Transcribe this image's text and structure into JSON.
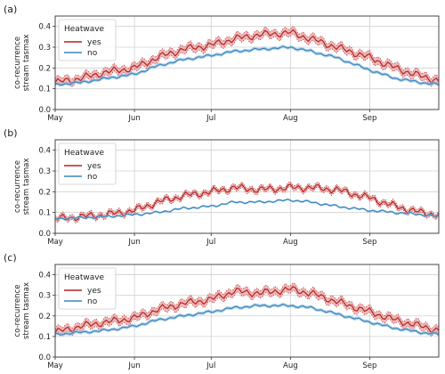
{
  "chart_data": [
    {
      "type": "line",
      "panel_label": "(a)",
      "ylabel_lines": [
        "co-recurrence",
        "stream tasmax"
      ],
      "ylim": [
        0,
        0.45
      ],
      "yticks": [
        "0.0",
        "0.1",
        "0.2",
        "0.3",
        "0.4"
      ],
      "ytick_values": [
        0,
        0.1,
        0.2,
        0.3,
        0.4
      ],
      "x_range_days": [
        0,
        150
      ],
      "xticks": [
        "May",
        "Jun",
        "Jul",
        "Aug",
        "Sep"
      ],
      "xtick_days": [
        0,
        31,
        61,
        92,
        123
      ],
      "grid": true,
      "legend": {
        "title": "Heatwave",
        "placement": "top-left",
        "entries": [
          "yes",
          "no"
        ]
      },
      "series": [
        {
          "name": "yes",
          "color": "#b22222",
          "band_color": "#e8a0a0",
          "x": [
            0,
            10,
            20,
            31,
            40,
            50,
            61,
            70,
            80,
            92,
            100,
            110,
            123,
            133,
            143,
            150
          ],
          "y": [
            0.13,
            0.15,
            0.18,
            0.2,
            0.25,
            0.29,
            0.31,
            0.34,
            0.36,
            0.37,
            0.34,
            0.3,
            0.25,
            0.2,
            0.16,
            0.14
          ],
          "band": 0.018
        },
        {
          "name": "no",
          "color": "#3a86c0",
          "band_color": "#9cc6e4",
          "x": [
            0,
            10,
            20,
            31,
            40,
            50,
            61,
            70,
            80,
            92,
            100,
            110,
            123,
            133,
            143,
            150
          ],
          "y": [
            0.12,
            0.13,
            0.15,
            0.17,
            0.21,
            0.24,
            0.26,
            0.28,
            0.29,
            0.3,
            0.28,
            0.25,
            0.19,
            0.15,
            0.13,
            0.12
          ],
          "band": 0.008
        }
      ]
    },
    {
      "type": "line",
      "panel_label": "(b)",
      "ylabel_lines": [
        "co-recurrence",
        "stream tasmax"
      ],
      "ylim": [
        0,
        0.45
      ],
      "yticks": [
        "0.0",
        "0.1",
        "0.2",
        "0.3",
        "0.4"
      ],
      "ytick_values": [
        0,
        0.1,
        0.2,
        0.3,
        0.4
      ],
      "x_range_days": [
        0,
        150
      ],
      "xticks": [
        "May",
        "Jun",
        "Jul",
        "Aug",
        "Sep"
      ],
      "xtick_days": [
        0,
        31,
        61,
        92,
        123
      ],
      "grid": true,
      "legend": {
        "title": "Heatwave",
        "placement": "top-left",
        "entries": [
          "yes",
          "no"
        ]
      },
      "series": [
        {
          "name": "yes",
          "color": "#b22222",
          "band_color": "#e8a0a0",
          "x": [
            0,
            10,
            20,
            31,
            40,
            50,
            61,
            70,
            80,
            92,
            100,
            110,
            123,
            133,
            143,
            150
          ],
          "y": [
            0.07,
            0.08,
            0.09,
            0.11,
            0.15,
            0.18,
            0.2,
            0.22,
            0.21,
            0.22,
            0.22,
            0.21,
            0.17,
            0.13,
            0.1,
            0.09
          ],
          "band": 0.012
        },
        {
          "name": "no",
          "color": "#3a86c0",
          "band_color": "#9cc6e4",
          "x": [
            0,
            10,
            20,
            31,
            40,
            50,
            61,
            70,
            80,
            92,
            100,
            110,
            123,
            133,
            143,
            150
          ],
          "y": [
            0.07,
            0.075,
            0.08,
            0.09,
            0.1,
            0.12,
            0.13,
            0.15,
            0.15,
            0.16,
            0.15,
            0.13,
            0.11,
            0.1,
            0.09,
            0.08
          ],
          "band": 0.005
        }
      ]
    },
    {
      "type": "line",
      "panel_label": "(c)",
      "ylabel_lines": [
        "co-recurrence",
        "stream tasmax"
      ],
      "ylim": [
        0,
        0.45
      ],
      "yticks": [
        "0.0",
        "0.1",
        "0.2",
        "0.3",
        "0.4"
      ],
      "ytick_values": [
        0,
        0.1,
        0.2,
        0.3,
        0.4
      ],
      "x_range_days": [
        0,
        150
      ],
      "xticks": [
        "May",
        "Jun",
        "Jul",
        "Aug",
        "Sep"
      ],
      "xtick_days": [
        0,
        31,
        61,
        92,
        123
      ],
      "grid": true,
      "legend": {
        "title": "Heatwave",
        "placement": "top-left",
        "entries": [
          "yes",
          "no"
        ]
      },
      "series": [
        {
          "name": "yes",
          "color": "#b22222",
          "band_color": "#e8a0a0",
          "x": [
            0,
            10,
            20,
            31,
            40,
            50,
            61,
            70,
            80,
            92,
            100,
            110,
            123,
            133,
            143,
            150
          ],
          "y": [
            0.12,
            0.15,
            0.17,
            0.19,
            0.23,
            0.26,
            0.28,
            0.32,
            0.31,
            0.33,
            0.31,
            0.27,
            0.22,
            0.18,
            0.15,
            0.13
          ],
          "band": 0.018
        },
        {
          "name": "no",
          "color": "#3a86c0",
          "band_color": "#9cc6e4",
          "x": [
            0,
            10,
            20,
            31,
            40,
            50,
            61,
            70,
            80,
            92,
            100,
            110,
            123,
            133,
            143,
            150
          ],
          "y": [
            0.11,
            0.12,
            0.13,
            0.15,
            0.18,
            0.2,
            0.22,
            0.24,
            0.25,
            0.25,
            0.24,
            0.21,
            0.17,
            0.14,
            0.12,
            0.11
          ],
          "band": 0.008
        }
      ]
    }
  ]
}
